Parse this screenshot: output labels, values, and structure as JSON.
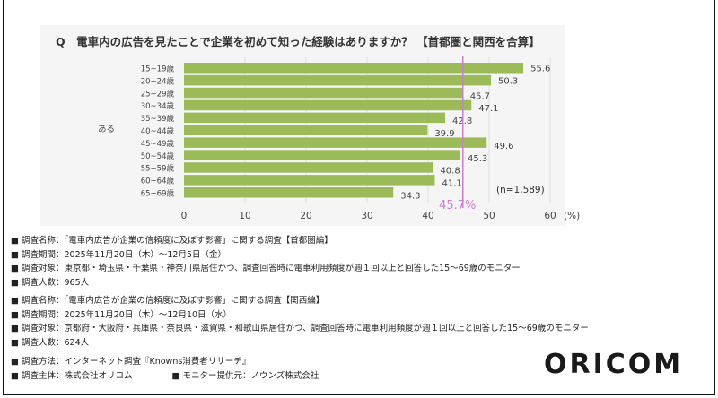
{
  "title": "Q　電車内の広告を見たことで企業を初めて知った経験はありますか？ 【首都圏と関西を合算】",
  "chart_data": {
    "type": "bar",
    "orientation": "horizontal",
    "group_label": "ある",
    "categories": [
      "15~19歳",
      "20~24歳",
      "25~29歳",
      "30~34歳",
      "35~39歳",
      "40~44歳",
      "45~49歳",
      "50~54歳",
      "55~59歳",
      "60~64歳",
      "65~69歳"
    ],
    "values": [
      55.6,
      50.3,
      45.7,
      47.1,
      42.8,
      39.9,
      49.6,
      45.3,
      40.8,
      41.1,
      34.3
    ],
    "value_labels": [
      "55.6",
      "50.3",
      "45.7",
      "47.1",
      "42.8",
      "39.9",
      "49.6",
      "45.3",
      "40.8",
      "41.1",
      "34.3"
    ],
    "xlim": [
      0,
      60
    ],
    "xticks": [
      "0",
      "10",
      "20",
      "30",
      "40",
      "50",
      "60"
    ],
    "xunit": "(%)",
    "grid": true,
    "reference_line": {
      "value": 45.7,
      "label": "45.7%",
      "color": "#d27bd0"
    },
    "sample_note": "(n=1,589)",
    "bar_color": "#9bbb59"
  },
  "notes": {
    "block1": [
      "■ 調査名称：「電車内広告が企業の信頼度に及ぼす影響」に関する調査【首都圏編】",
      "■ 調査期間：2025年11月20日（木）～12月5日（金）",
      "■ 調査対象：東京都・埼玉県・千葉県・神奈川県居住かつ、調査回答時に電車利用頻度が週１回以上と回答した15～69歳のモニター",
      "■ 調査人数：965人"
    ],
    "block2": [
      "■ 調査名称：「電車内広告が企業の信頼度に及ぼす影響」に関する調査【関西編】",
      "■ 調査期間：2025年11月20日（木）～12月10日（水）",
      "■ 調査対象：京都府・大阪府・兵庫県・奈良県・滋賀県・和歌山県居住かつ、調査回答時に電車利用頻度が週１回以上と回答した15～69歳のモニター",
      "■ 調査人数：624人"
    ],
    "method": "■ 調査方法：インターネット調査『Knowns消費者リサーチ』",
    "sponsor": "■ 調査主体：株式会社オリコム",
    "provider": "■ モニター提供元：ノウンズ株式会社"
  },
  "logo": "ORICOM"
}
